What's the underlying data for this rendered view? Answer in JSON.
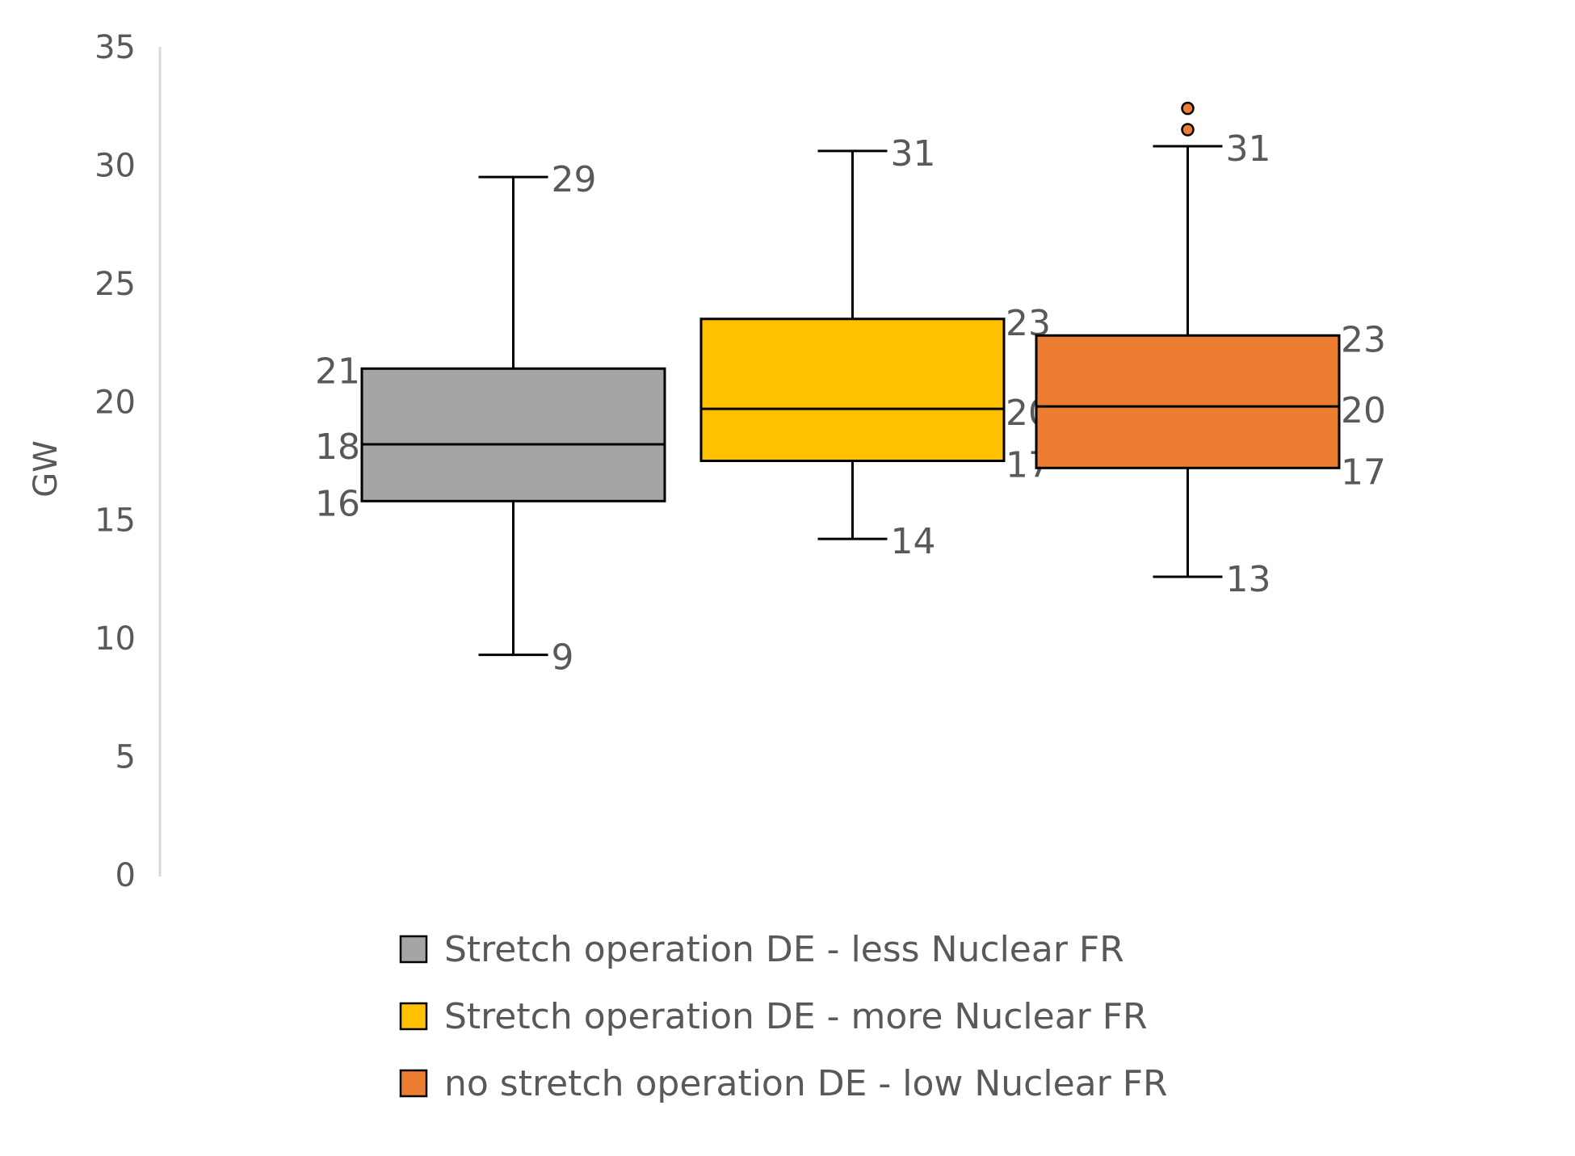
{
  "chart_data": {
    "type": "box",
    "ylabel": "GW",
    "ylim": [
      0,
      35
    ],
    "yticks": [
      "0",
      "5",
      "10",
      "15",
      "20",
      "25",
      "30",
      "35"
    ],
    "grid": false,
    "legend_position": "bottom",
    "series": [
      {
        "name": "Stretch operation DE - less Nuclear FR",
        "color": "#A5A5A5",
        "whisker_low": 9.3,
        "q1": 15.8,
        "median": 18.2,
        "q3": 21.4,
        "whisker_high": 29.5,
        "outliers": [],
        "labels": {
          "whisker_high": "29",
          "q3": "21",
          "median": "18",
          "q1": "16",
          "whisker_low": "9"
        }
      },
      {
        "name": "Stretch operation DE - more Nuclear FR",
        "color": "#FFC000",
        "whisker_low": 14.2,
        "q1": 17.5,
        "median": 19.7,
        "q3": 23.5,
        "whisker_high": 30.6,
        "outliers": [],
        "labels": {
          "whisker_high": "31",
          "q3": "23",
          "median": "20",
          "q1": "17",
          "whisker_low": "14"
        }
      },
      {
        "name": "no stretch operation DE - low Nuclear FR",
        "color": "#ED7D31",
        "whisker_low": 12.6,
        "q1": 17.2,
        "median": 19.8,
        "q3": 22.8,
        "whisker_high": 30.8,
        "outliers": [
          31.5,
          32.4
        ],
        "labels": {
          "whisker_high": "31",
          "q3": "23",
          "median": "20",
          "q1": "17",
          "whisker_low": "13"
        }
      }
    ]
  }
}
